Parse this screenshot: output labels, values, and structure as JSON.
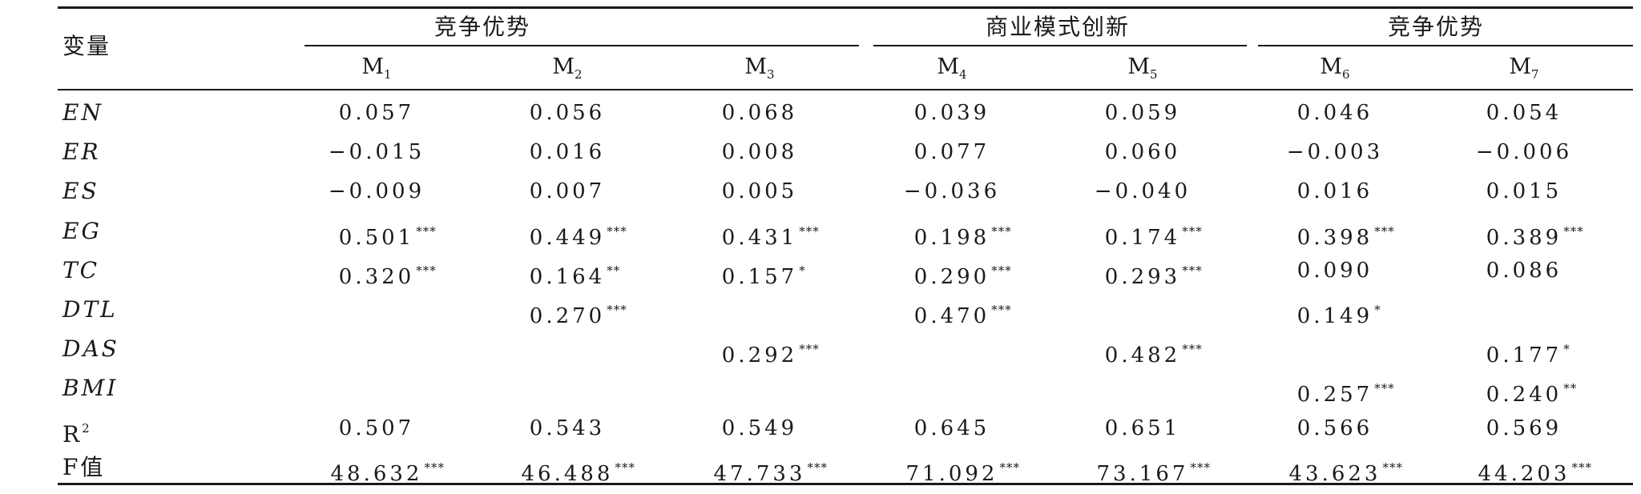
{
  "header": {
    "variable_label": "变量",
    "groups": [
      {
        "label": "竞争优势",
        "models": [
          "M1",
          "M2",
          "M3"
        ]
      },
      {
        "label": "商业模式创新",
        "models": [
          "M4",
          "M5"
        ]
      },
      {
        "label": "竞争优势",
        "models": [
          "M6",
          "M7"
        ]
      }
    ],
    "models": [
      {
        "base": "M",
        "sub": "1"
      },
      {
        "base": "M",
        "sub": "2"
      },
      {
        "base": "M",
        "sub": "3"
      },
      {
        "base": "M",
        "sub": "4"
      },
      {
        "base": "M",
        "sub": "5"
      },
      {
        "base": "M",
        "sub": "6"
      },
      {
        "base": "M",
        "sub": "7"
      }
    ]
  },
  "rows": [
    {
      "label": "EN",
      "italic": true,
      "cells": [
        {
          "v": "0.057",
          "s": ""
        },
        {
          "v": "0.056",
          "s": ""
        },
        {
          "v": "0.068",
          "s": ""
        },
        {
          "v": "0.039",
          "s": ""
        },
        {
          "v": "0.059",
          "s": ""
        },
        {
          "v": "0.046",
          "s": ""
        },
        {
          "v": "0.054",
          "s": ""
        }
      ]
    },
    {
      "label": "ER",
      "italic": true,
      "cells": [
        {
          "v": "−0.015",
          "s": ""
        },
        {
          "v": "0.016",
          "s": ""
        },
        {
          "v": "0.008",
          "s": ""
        },
        {
          "v": "0.077",
          "s": ""
        },
        {
          "v": "0.060",
          "s": ""
        },
        {
          "v": "−0.003",
          "s": ""
        },
        {
          "v": "−0.006",
          "s": ""
        }
      ]
    },
    {
      "label": "ES",
      "italic": true,
      "cells": [
        {
          "v": "−0.009",
          "s": ""
        },
        {
          "v": "0.007",
          "s": ""
        },
        {
          "v": "0.005",
          "s": ""
        },
        {
          "v": "−0.036",
          "s": ""
        },
        {
          "v": "−0.040",
          "s": ""
        },
        {
          "v": "0.016",
          "s": ""
        },
        {
          "v": "0.015",
          "s": ""
        }
      ]
    },
    {
      "label": "EG",
      "italic": true,
      "cells": [
        {
          "v": "0.501",
          "s": "***"
        },
        {
          "v": "0.449",
          "s": "***"
        },
        {
          "v": "0.431",
          "s": "***"
        },
        {
          "v": "0.198",
          "s": "***"
        },
        {
          "v": "0.174",
          "s": "***"
        },
        {
          "v": "0.398",
          "s": "***"
        },
        {
          "v": "0.389",
          "s": "***"
        }
      ]
    },
    {
      "label": "TC",
      "italic": true,
      "cells": [
        {
          "v": "0.320",
          "s": "***"
        },
        {
          "v": "0.164",
          "s": "**"
        },
        {
          "v": "0.157",
          "s": "*"
        },
        {
          "v": "0.290",
          "s": "***"
        },
        {
          "v": "0.293",
          "s": "***"
        },
        {
          "v": "0.090",
          "s": ""
        },
        {
          "v": "0.086",
          "s": ""
        }
      ]
    },
    {
      "label": "DTL",
      "italic": true,
      "cells": [
        {
          "v": "",
          "s": ""
        },
        {
          "v": "0.270",
          "s": "***"
        },
        {
          "v": "",
          "s": ""
        },
        {
          "v": "0.470",
          "s": "***"
        },
        {
          "v": "",
          "s": ""
        },
        {
          "v": "0.149",
          "s": "*"
        },
        {
          "v": "",
          "s": ""
        }
      ]
    },
    {
      "label": "DAS",
      "italic": true,
      "cells": [
        {
          "v": "",
          "s": ""
        },
        {
          "v": "",
          "s": ""
        },
        {
          "v": "0.292",
          "s": "***"
        },
        {
          "v": "",
          "s": ""
        },
        {
          "v": "0.482",
          "s": "***"
        },
        {
          "v": "",
          "s": ""
        },
        {
          "v": "0.177",
          "s": "*"
        }
      ]
    },
    {
      "label": "BMI",
      "italic": true,
      "cells": [
        {
          "v": "",
          "s": ""
        },
        {
          "v": "",
          "s": ""
        },
        {
          "v": "",
          "s": ""
        },
        {
          "v": "",
          "s": ""
        },
        {
          "v": "",
          "s": ""
        },
        {
          "v": "0.257",
          "s": "***"
        },
        {
          "v": "0.240",
          "s": "**"
        }
      ]
    },
    {
      "label": "R",
      "sup": "2",
      "italic": false,
      "cells": [
        {
          "v": "0.507",
          "s": ""
        },
        {
          "v": "0.543",
          "s": ""
        },
        {
          "v": "0.549",
          "s": ""
        },
        {
          "v": "0.645",
          "s": ""
        },
        {
          "v": "0.651",
          "s": ""
        },
        {
          "v": "0.566",
          "s": ""
        },
        {
          "v": "0.569",
          "s": ""
        }
      ]
    },
    {
      "label": "F值",
      "italic": false,
      "cells": [
        {
          "v": "48.632",
          "s": "***"
        },
        {
          "v": "46.488",
          "s": "***"
        },
        {
          "v": "47.733",
          "s": "***"
        },
        {
          "v": "71.092",
          "s": "***"
        },
        {
          "v": "73.167",
          "s": "***"
        },
        {
          "v": "43.623",
          "s": "***"
        },
        {
          "v": "44.203",
          "s": "***"
        }
      ]
    }
  ]
}
